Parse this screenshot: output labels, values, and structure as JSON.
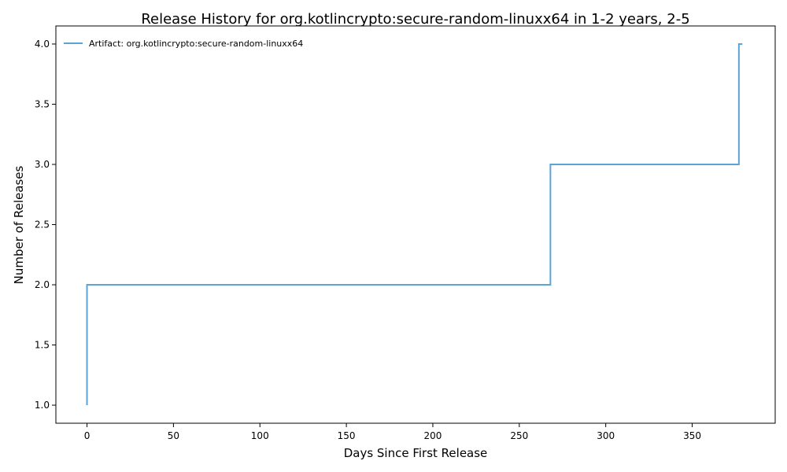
{
  "chart_data": {
    "type": "line",
    "title": "Release History for org.kotlincrypto:secure-random-linuxx64 in 1-2 years, 2-5",
    "xlabel": "Days Since First Release",
    "ylabel": "Number of Releases",
    "xlim": [
      -18,
      398
    ],
    "ylim": [
      0.85,
      4.15
    ],
    "x_ticks": [
      0,
      50,
      100,
      150,
      200,
      250,
      300,
      350
    ],
    "y_ticks": [
      1.0,
      1.5,
      2.0,
      2.5,
      3.0,
      3.5,
      4.0
    ],
    "y_tick_format": 1,
    "grid": false,
    "legend_position": "top-left",
    "series": [
      {
        "name": "Artifact: org.kotlincrypto:secure-random-linuxx64",
        "color": "#5aa4d6",
        "step": "post",
        "x": [
          0,
          0,
          268,
          377,
          379
        ],
        "y": [
          1,
          2,
          3,
          4,
          4
        ]
      }
    ]
  }
}
